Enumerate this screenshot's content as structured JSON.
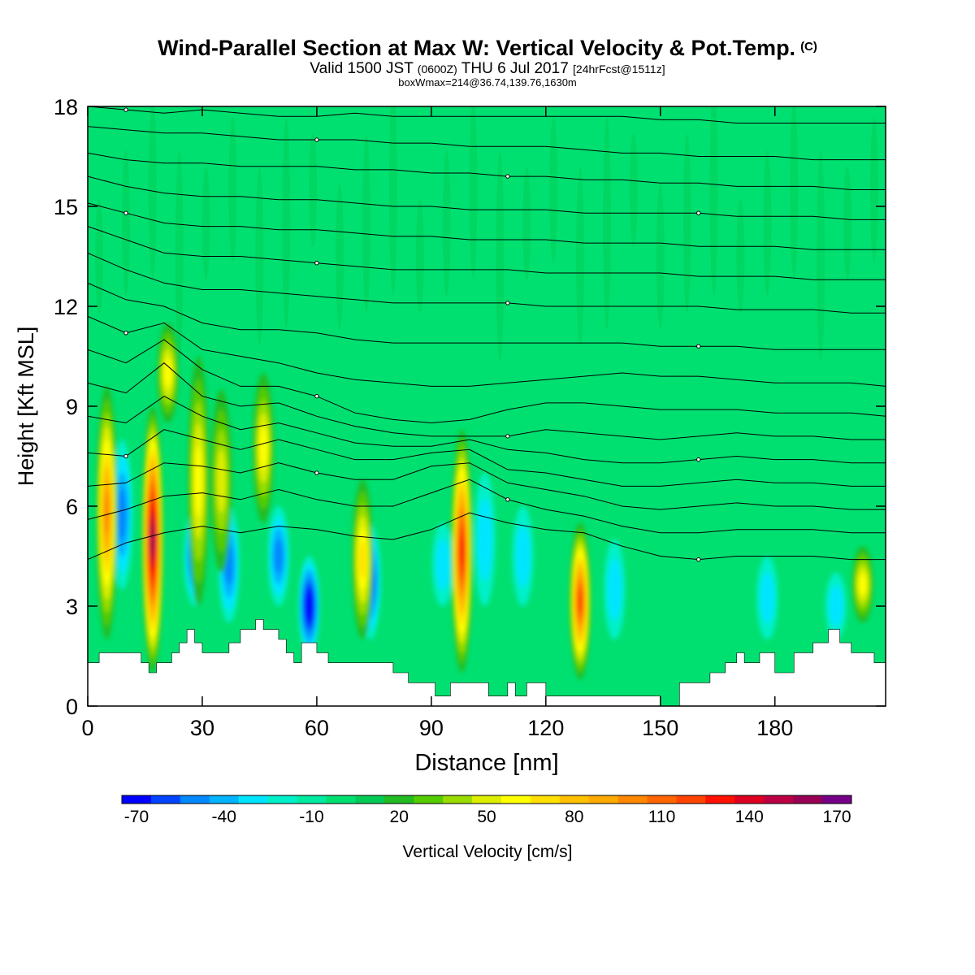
{
  "header": {
    "title": "Wind-Parallel Section at Max W: Vertical Velocity & Pot.Temp.",
    "copyright": "(C)",
    "valid_prefix": "Valid 1500 JST",
    "valid_utc": "(0600Z)",
    "valid_date": "THU 6 Jul 2017",
    "forecast_info": "[24hrFcst@1511z]",
    "box_info": "boxWmax=214@36.74,139.76,1630m"
  },
  "chart_data": {
    "type": "heatmap",
    "title": "Wind-Parallel Section at Max W: Vertical Velocity & Pot.Temp.",
    "xlabel": "Distance [nm]",
    "ylabel": "Height [Kft MSL]",
    "xlim": [
      0,
      209
    ],
    "ylim": [
      0,
      18
    ],
    "xticks": [
      0,
      30,
      60,
      90,
      120,
      150,
      180
    ],
    "yticks": [
      0,
      3,
      6,
      9,
      12,
      15,
      18
    ],
    "colorbar": {
      "label": "Vertical Velocity [cm/s]",
      "tick_labels": [
        "-70",
        "-40",
        "-10",
        "20",
        "50",
        "80",
        "110",
        "140",
        "170"
      ],
      "levels": [
        -70,
        -60,
        -50,
        -40,
        -30,
        -20,
        -10,
        0,
        10,
        20,
        30,
        40,
        50,
        60,
        70,
        80,
        90,
        100,
        110,
        120,
        130,
        140,
        150,
        160,
        170,
        180
      ],
      "colors": [
        "#0000ff",
        "#0044ff",
        "#0088ff",
        "#00b4ff",
        "#00e5ff",
        "#00f0c8",
        "#00eaa0",
        "#00e070",
        "#00cc55",
        "#22bb22",
        "#55cc00",
        "#99dd00",
        "#ddee00",
        "#ffff00",
        "#ffe000",
        "#ffc000",
        "#ffaa00",
        "#ff8800",
        "#ff6600",
        "#ff4400",
        "#ff1100",
        "#dd0022",
        "#bb0044",
        "#990055",
        "#770088"
      ]
    },
    "updrafts": [
      {
        "x": 5,
        "base": 2.0,
        "top": 9.6,
        "w": 105
      },
      {
        "x": 17,
        "base": 1.0,
        "top": 9.0,
        "w": 165
      },
      {
        "x": 21,
        "base": 8.5,
        "top": 11.5,
        "w": 60
      },
      {
        "x": 29,
        "base": 3.0,
        "top": 10.5,
        "w": 60
      },
      {
        "x": 35,
        "base": 4.0,
        "top": 9.5,
        "w": 50
      },
      {
        "x": 46,
        "base": 5.5,
        "top": 10.0,
        "w": 60
      },
      {
        "x": 72,
        "base": 2.0,
        "top": 6.8,
        "w": 70
      },
      {
        "x": 98,
        "base": 1.0,
        "top": 8.3,
        "w": 130
      },
      {
        "x": 129,
        "base": 0.8,
        "top": 5.5,
        "w": 120
      },
      {
        "x": 203,
        "base": 2.5,
        "top": 4.8,
        "w": 65
      }
    ],
    "downdrafts": [
      {
        "x": 9,
        "base": 3.5,
        "top": 8.0,
        "w": -40
      },
      {
        "x": 28,
        "base": 3.0,
        "top": 6.0,
        "w": -50
      },
      {
        "x": 37,
        "base": 2.5,
        "top": 6.0,
        "w": -40
      },
      {
        "x": 50,
        "base": 3.0,
        "top": 6.0,
        "w": -40
      },
      {
        "x": 58,
        "base": 1.5,
        "top": 4.5,
        "w": -70
      },
      {
        "x": 74,
        "base": 2.0,
        "top": 5.5,
        "w": -55
      },
      {
        "x": 93,
        "base": 3.0,
        "top": 5.5,
        "w": -20
      },
      {
        "x": 104,
        "base": 3.0,
        "top": 7.0,
        "w": -20
      },
      {
        "x": 114,
        "base": 3.0,
        "top": 6.0,
        "w": -25
      },
      {
        "x": 138,
        "base": 2.0,
        "top": 5.0,
        "w": -20
      },
      {
        "x": 178,
        "base": 2.0,
        "top": 4.5,
        "w": -20
      },
      {
        "x": 196,
        "base": 2.0,
        "top": 4.0,
        "w": -25
      }
    ],
    "terrain": {
      "x": [
        0,
        3,
        5,
        9,
        14,
        16,
        18,
        20,
        22,
        24,
        26,
        28,
        30,
        35,
        37,
        40,
        44,
        46,
        50,
        52,
        54,
        56,
        60,
        63,
        70,
        75,
        80,
        84,
        90,
        91,
        95,
        100,
        105,
        110,
        112,
        115,
        120,
        125,
        130,
        135,
        145,
        150,
        155,
        160,
        163,
        167,
        170,
        172,
        176,
        180,
        185,
        190,
        194,
        197,
        200,
        206,
        209
      ],
      "y": [
        1.3,
        1.6,
        1.6,
        1.6,
        1.3,
        1.0,
        1.3,
        1.3,
        1.6,
        1.9,
        2.3,
        1.9,
        1.6,
        1.6,
        1.9,
        2.3,
        2.6,
        2.3,
        2.0,
        1.6,
        1.3,
        1.9,
        1.6,
        1.3,
        1.3,
        1.3,
        1.0,
        0.7,
        0.7,
        0.3,
        0.7,
        0.7,
        0.3,
        0.7,
        0.3,
        0.7,
        0.3,
        0.3,
        0.3,
        0.3,
        0.3,
        0.0,
        0.7,
        0.7,
        1.0,
        1.3,
        1.6,
        1.3,
        1.6,
        1.0,
        1.6,
        1.9,
        2.3,
        1.9,
        1.6,
        1.3,
        1.3
      ]
    },
    "isentropes": {
      "x": [
        0,
        10,
        20,
        30,
        40,
        50,
        60,
        70,
        80,
        90,
        100,
        110,
        120,
        130,
        140,
        150,
        160,
        170,
        180,
        190,
        200,
        209
      ],
      "lines": [
        [
          18.0,
          17.9,
          17.8,
          17.9,
          17.8,
          17.7,
          17.7,
          17.8,
          17.7,
          17.7,
          17.7,
          17.7,
          17.7,
          17.7,
          17.7,
          17.6,
          17.6,
          17.5,
          17.5,
          17.5,
          17.5,
          17.5
        ],
        [
          17.4,
          17.3,
          17.2,
          17.2,
          17.1,
          17.0,
          17.0,
          17.0,
          16.9,
          16.9,
          16.8,
          16.8,
          16.8,
          16.7,
          16.6,
          16.6,
          16.5,
          16.5,
          16.5,
          16.4,
          16.4,
          16.4
        ],
        [
          16.6,
          16.4,
          16.3,
          16.3,
          16.2,
          16.2,
          16.2,
          16.1,
          16.1,
          16.0,
          16.0,
          15.9,
          15.9,
          15.8,
          15.8,
          15.7,
          15.7,
          15.6,
          15.6,
          15.6,
          15.5,
          15.5
        ],
        [
          15.9,
          15.6,
          15.4,
          15.3,
          15.3,
          15.2,
          15.2,
          15.1,
          15.0,
          15.0,
          14.9,
          14.9,
          14.9,
          14.8,
          14.8,
          14.8,
          14.8,
          14.7,
          14.7,
          14.7,
          14.6,
          14.6
        ],
        [
          15.1,
          14.8,
          14.5,
          14.4,
          14.4,
          14.3,
          14.3,
          14.2,
          14.1,
          14.1,
          14.0,
          14.0,
          14.0,
          13.9,
          13.9,
          13.9,
          13.8,
          13.8,
          13.8,
          13.7,
          13.7,
          13.7
        ],
        [
          14.4,
          14.0,
          13.6,
          13.5,
          13.5,
          13.4,
          13.3,
          13.2,
          13.1,
          13.1,
          13.1,
          13.1,
          13.0,
          13.0,
          13.0,
          13.0,
          12.9,
          12.9,
          12.9,
          12.8,
          12.8,
          12.8
        ],
        [
          13.6,
          13.1,
          12.7,
          12.5,
          12.5,
          12.4,
          12.3,
          12.2,
          12.1,
          12.1,
          12.1,
          12.1,
          12.0,
          12.0,
          12.0,
          12.0,
          12.0,
          11.9,
          11.9,
          11.9,
          11.8,
          11.8
        ],
        [
          12.7,
          12.2,
          12.0,
          11.5,
          11.3,
          11.3,
          11.2,
          11.0,
          10.9,
          10.9,
          10.9,
          10.9,
          10.9,
          10.9,
          10.9,
          10.8,
          10.8,
          10.8,
          10.7,
          10.7,
          10.7,
          10.7
        ],
        [
          11.7,
          11.2,
          11.5,
          10.7,
          10.5,
          10.3,
          10.0,
          9.8,
          9.7,
          9.6,
          9.6,
          9.7,
          9.8,
          9.9,
          10.0,
          9.9,
          9.9,
          9.8,
          9.7,
          9.7,
          9.7,
          9.6
        ],
        [
          10.7,
          10.3,
          11.0,
          10.1,
          9.6,
          9.6,
          9.3,
          8.8,
          8.6,
          8.5,
          8.6,
          8.9,
          9.1,
          9.1,
          9.0,
          8.9,
          8.9,
          8.9,
          8.8,
          8.8,
          8.8,
          8.7
        ],
        [
          9.7,
          9.4,
          10.3,
          9.3,
          9.0,
          9.1,
          8.7,
          8.4,
          8.2,
          8.1,
          8.1,
          8.1,
          8.3,
          8.2,
          8.1,
          8.0,
          8.1,
          8.2,
          8.1,
          8.1,
          8.0,
          8.0
        ],
        [
          8.7,
          8.5,
          9.3,
          8.7,
          8.3,
          8.5,
          8.2,
          7.9,
          7.8,
          7.8,
          8.0,
          7.7,
          7.6,
          7.4,
          7.3,
          7.3,
          7.4,
          7.5,
          7.4,
          7.4,
          7.3,
          7.3
        ],
        [
          7.6,
          7.5,
          8.3,
          8.0,
          7.7,
          8.0,
          7.7,
          7.4,
          7.4,
          7.6,
          7.7,
          7.1,
          7.0,
          6.8,
          6.6,
          6.6,
          6.7,
          6.8,
          6.7,
          6.7,
          6.6,
          6.6
        ],
        [
          6.6,
          6.7,
          7.3,
          7.2,
          7.0,
          7.3,
          7.0,
          6.8,
          6.8,
          7.2,
          7.3,
          6.7,
          6.5,
          6.3,
          6.0,
          5.9,
          6.0,
          6.1,
          6.0,
          6.0,
          5.9,
          5.9
        ],
        [
          5.6,
          5.9,
          6.3,
          6.4,
          6.2,
          6.5,
          6.2,
          6.0,
          6.0,
          6.4,
          6.8,
          6.2,
          5.9,
          5.7,
          5.4,
          5.2,
          5.2,
          5.3,
          5.3,
          5.3,
          5.2,
          5.2
        ],
        [
          4.4,
          4.9,
          5.2,
          5.4,
          5.2,
          5.4,
          5.3,
          5.1,
          5.0,
          5.3,
          5.8,
          5.5,
          5.3,
          5.2,
          4.8,
          4.5,
          4.4,
          4.5,
          4.5,
          4.5,
          4.4,
          4.4
        ]
      ]
    }
  }
}
